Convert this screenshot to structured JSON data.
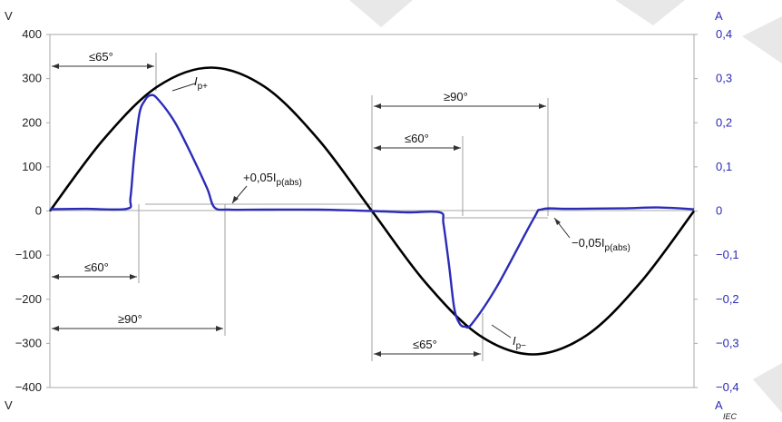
{
  "chart_data": {
    "type": "line",
    "left_axis": {
      "unit": "V",
      "ticks": [
        "400",
        "300",
        "200",
        "100",
        "0",
        "−100",
        "−200",
        "−300",
        "−400"
      ],
      "ylim": [
        -400,
        400
      ]
    },
    "right_axis": {
      "unit": "A",
      "ticks": [
        "0,4",
        "0,3",
        "0,2",
        "0,1",
        "0",
        "−0,1",
        "−0,2",
        "−0,3",
        "−0,4"
      ],
      "ylim": [
        -0.4,
        0.4
      ]
    },
    "x_range_deg": [
      0,
      360
    ],
    "series": [
      {
        "color": "#000000",
        "axis": "left",
        "kind": "voltage",
        "x": [
          0,
          30,
          60,
          90,
          120,
          150,
          180,
          210,
          240,
          270,
          300,
          330,
          360
        ],
        "values": [
          0,
          162.5,
          281.5,
          325,
          281.5,
          162.5,
          0,
          -162.5,
          -281.5,
          -325,
          -281.5,
          -162.5,
          0
        ]
      },
      {
        "color": "#2b2bb8",
        "axis": "left",
        "kind": "current",
        "x": [
          0,
          20,
          43,
          45,
          47,
          50,
          53,
          56,
          60,
          70,
          80,
          88,
          92,
          100,
          120,
          150,
          180,
          200,
          218,
          220,
          223,
          226,
          229,
          232,
          236,
          250,
          270,
          275,
          290,
          320,
          340,
          360
        ],
        "values": [
          0.004,
          0.005,
          0.005,
          0.03,
          0.12,
          0.22,
          0.25,
          0.262,
          0.255,
          0.2,
          0.12,
          0.05,
          0.008,
          0.003,
          0.003,
          0.003,
          0.0,
          -0.003,
          -0.003,
          -0.03,
          -0.12,
          -0.22,
          -0.255,
          -0.262,
          -0.255,
          -0.17,
          -0.02,
          0.004,
          0.005,
          0.006,
          0.008,
          0.004
        ]
      }
    ],
    "annotations": [
      {
        "text": "≤65°"
      },
      {
        "text": "≤60°"
      },
      {
        "text": "≥90°"
      },
      {
        "text": "≥90°"
      },
      {
        "text": "≤60°"
      },
      {
        "text": "≤65°"
      },
      {
        "prefix": "I",
        "sub": "p+"
      },
      {
        "prefix": "+0,05I",
        "sub": "p(abs)"
      },
      {
        "prefix": "−0,05I",
        "sub": "p(abs)"
      },
      {
        "prefix": "I",
        "sub": "p−"
      }
    ],
    "source_mark": "IEC"
  }
}
